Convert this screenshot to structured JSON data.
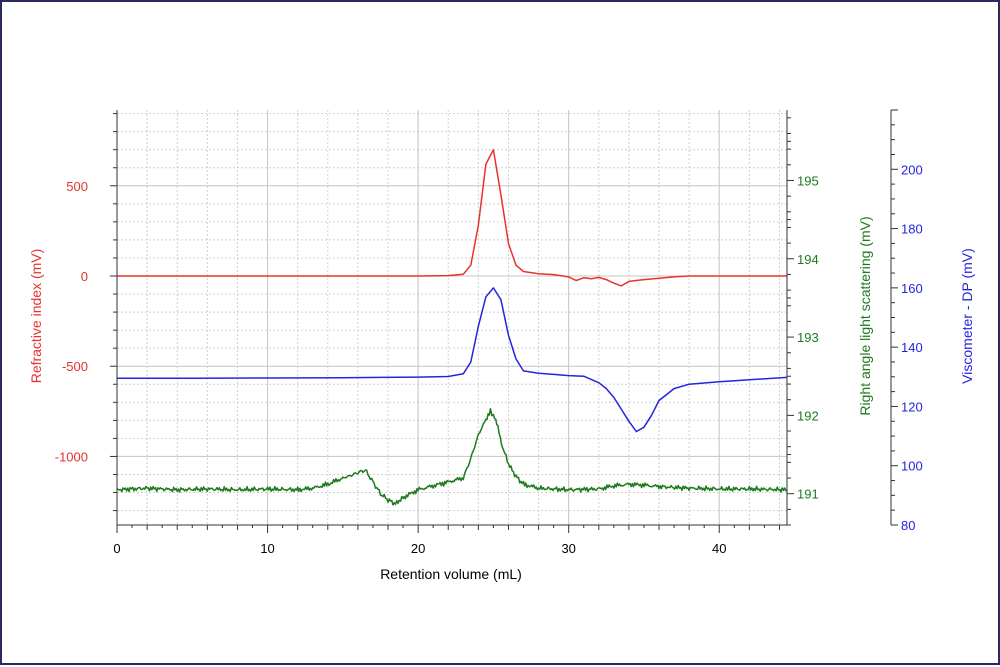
{
  "chart_data": {
    "type": "line",
    "x_axis": {
      "label": "Retention volume (mL)",
      "range": [
        0,
        44.5
      ],
      "ticks": [
        0,
        10,
        20,
        30,
        40
      ],
      "tick_labels": [
        "0",
        "10",
        "20",
        "30",
        "40"
      ]
    },
    "y_axes": [
      {
        "id": "ri",
        "side": "left",
        "label": "Refractive index (mV)",
        "color": "#e8322f",
        "range": [
          -1380,
          920
        ],
        "ticks": [
          500,
          0,
          -500,
          -1000
        ],
        "tick_labels": [
          "500",
          "0",
          "-500",
          "-1000"
        ]
      },
      {
        "id": "rals",
        "side": "right",
        "label": "Right angle light scattering (mV)",
        "color": "#1e7a1e",
        "range": [
          190.6,
          195.9
        ],
        "ticks": [
          195,
          194,
          193,
          192,
          191
        ],
        "tick_labels": [
          "195",
          "194",
          "193",
          "192",
          "191"
        ]
      },
      {
        "id": "dp",
        "side": "right",
        "label": "Viscometer - DP (mV)",
        "color": "#2424e0",
        "range": [
          80,
          220
        ],
        "ticks": [
          200,
          180,
          160,
          140,
          120,
          100,
          80
        ],
        "tick_labels": [
          "200",
          "180",
          "160",
          "140",
          "120",
          "100",
          "80"
        ]
      }
    ],
    "series": [
      {
        "axis": "ri",
        "color": "#e8322f",
        "x": [
          0,
          5,
          10,
          15,
          20,
          22,
          23,
          23.5,
          24,
          24.5,
          25,
          25.5,
          26,
          26.5,
          27,
          28,
          29,
          30,
          30.5,
          31,
          31.5,
          32,
          32.5,
          33,
          33.5,
          34,
          35,
          36,
          37,
          38,
          40,
          44.5
        ],
        "y": [
          0,
          0,
          0,
          0,
          0,
          2,
          10,
          60,
          280,
          620,
          700,
          450,
          180,
          60,
          25,
          12,
          8,
          -5,
          -25,
          -10,
          -15,
          -8,
          -20,
          -40,
          -55,
          -30,
          -20,
          -12,
          -5,
          0,
          0,
          0
        ]
      },
      {
        "axis": "dp",
        "color": "#2424e0",
        "x": [
          0,
          5,
          10,
          15,
          20,
          22,
          23,
          23.5,
          24,
          24.5,
          25,
          25.5,
          26,
          26.5,
          27,
          28,
          29,
          30,
          31,
          32,
          32.5,
          33,
          33.5,
          34,
          34.5,
          35,
          35.5,
          36,
          37,
          38,
          40,
          42,
          44.5
        ],
        "y": [
          129.5,
          129.5,
          129.6,
          129.7,
          129.9,
          130.1,
          131,
          135,
          147,
          157,
          160,
          156,
          144,
          136,
          132,
          131.2,
          130.8,
          130.4,
          130.2,
          128,
          126,
          123,
          119,
          115,
          111.5,
          113,
          117,
          122,
          126,
          127.5,
          128.3,
          129,
          129.8
        ]
      },
      {
        "axis": "rals",
        "color": "#1e7a1e",
        "x": [
          0,
          2,
          4,
          6,
          8,
          10,
          12,
          13,
          14,
          15,
          15.5,
          16,
          16.5,
          17,
          17.5,
          18,
          18.5,
          19,
          20,
          21,
          22,
          23,
          23.5,
          24,
          24.5,
          24.8,
          25,
          25.3,
          25.6,
          26,
          26.5,
          27,
          28,
          30,
          32,
          33,
          34,
          35,
          36,
          38,
          40,
          42,
          44.5
        ],
        "y": [
          191.05,
          191.07,
          191.05,
          191.06,
          191.05,
          191.06,
          191.05,
          191.07,
          191.12,
          191.2,
          191.23,
          191.27,
          191.3,
          191.15,
          191.0,
          190.92,
          190.87,
          190.95,
          191.05,
          191.1,
          191.15,
          191.2,
          191.45,
          191.75,
          191.95,
          192.05,
          192.0,
          191.85,
          191.6,
          191.38,
          191.22,
          191.12,
          191.07,
          191.05,
          191.06,
          191.1,
          191.12,
          191.11,
          191.09,
          191.07,
          191.06,
          191.06,
          191.05
        ]
      }
    ],
    "grid": true
  }
}
